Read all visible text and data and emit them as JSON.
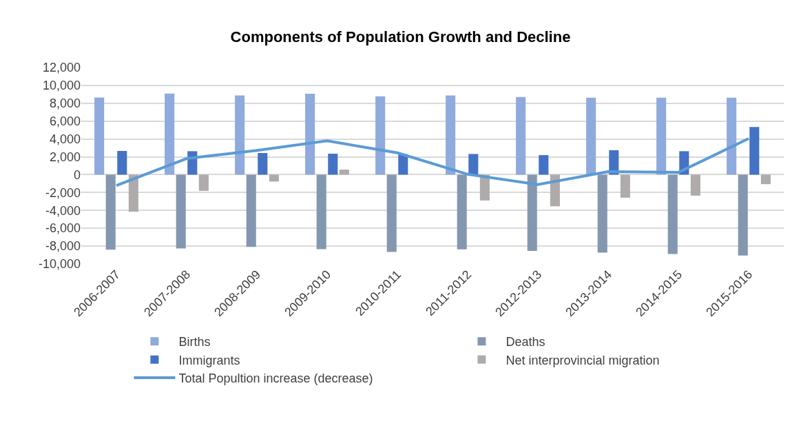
{
  "chart_data": {
    "type": "bar",
    "title": "Components of Population Growth and Decline",
    "categories": [
      "2006-2007",
      "2007-2008",
      "2008-2009",
      "2009-2010",
      "2010-2011",
      "2011-2012",
      "2012-2013",
      "2013-2014",
      "2014-2015",
      "2015-2016"
    ],
    "series": [
      {
        "name": "Births",
        "color": "#8faadc",
        "values": [
          8650,
          9080,
          8880,
          9060,
          8770,
          8880,
          8700,
          8620,
          8620,
          8620
        ]
      },
      {
        "name": "Deaths",
        "color": "#8497b0",
        "values": [
          -8390,
          -8260,
          -8080,
          -8340,
          -8650,
          -8360,
          -8540,
          -8720,
          -8880,
          -9060
        ]
      },
      {
        "name": "Immigrants",
        "color": "#4472c4",
        "values": [
          2660,
          2630,
          2430,
          2350,
          2300,
          2320,
          2190,
          2740,
          2630,
          5340
        ]
      },
      {
        "name": "Net interprovincial migration",
        "color": "#afabab",
        "values": [
          -4150,
          -1810,
          -770,
          570,
          0,
          -2890,
          -3540,
          -2580,
          -2350,
          -1060
        ]
      },
      {
        "name": "Total Popultion increase (decrease)",
        "type": "line",
        "color": "#5b9bd5",
        "values": [
          -1210,
          1810,
          2710,
          3790,
          2450,
          50,
          -1110,
          340,
          260,
          4050
        ]
      }
    ],
    "ylim": [
      -10000,
      12000
    ],
    "yticks": [
      {
        "value": -10000,
        "label": "-10,000"
      },
      {
        "value": -8000,
        "label": "-8,000"
      },
      {
        "value": -6000,
        "label": "-6,000"
      },
      {
        "value": -4000,
        "label": "-4,000"
      },
      {
        "value": -2000,
        "label": "-2,000"
      },
      0,
      {
        "value": 2000,
        "label": "2,000"
      },
      {
        "value": 4000,
        "label": "4,000"
      },
      {
        "value": 6000,
        "label": "6,000"
      },
      {
        "value": 8000,
        "label": "8,000"
      },
      {
        "value": 10000,
        "label": "10,000"
      },
      {
        "value": 12000,
        "label": "12,000"
      }
    ],
    "grid": "y",
    "legend": "bottom",
    "marker": "none",
    "line_style": "solid"
  }
}
